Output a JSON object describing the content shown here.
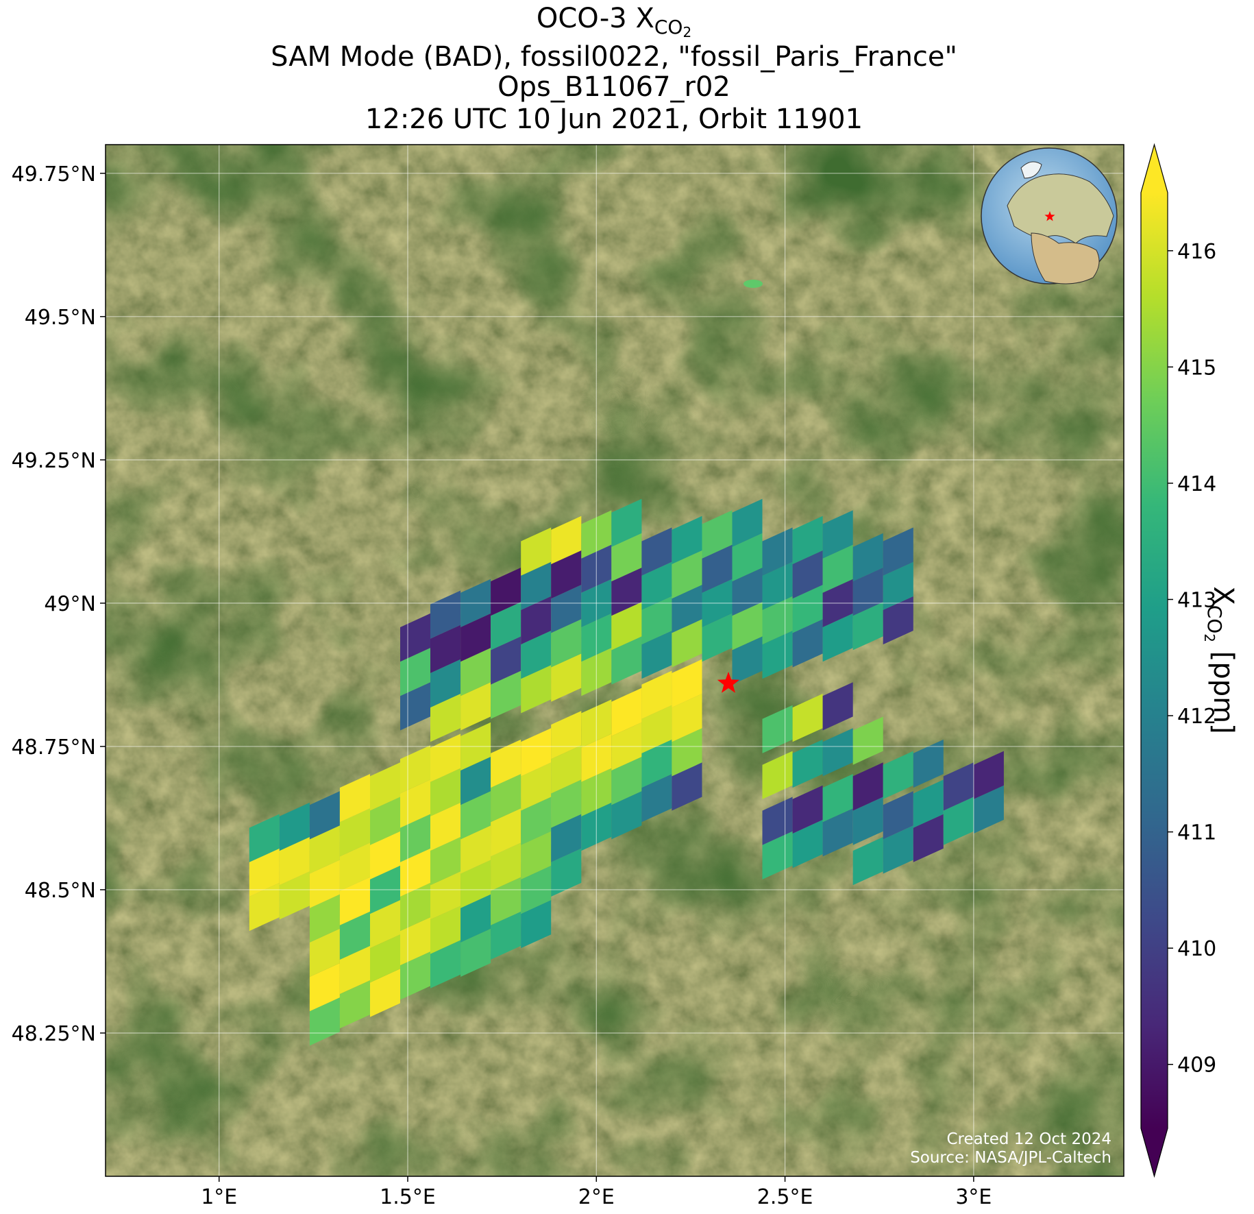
{
  "chart_data": {
    "type": "map",
    "title": {
      "text": "OCO-3 X",
      "subscript": "CO",
      "subsubscript": "2"
    },
    "subtitles": [
      "SAM Mode (BAD), fossil0022, \"fossil_Paris_France\"",
      "Ops_B11067_r02",
      "12:26 UTC 10 Jun 2021, Orbit 11901"
    ],
    "xlim": [
      0.699,
      3.398
    ],
    "ylim": [
      48.0,
      49.8
    ],
    "xticks": [
      {
        "value": 1,
        "label": "1°E"
      },
      {
        "value": 1.5,
        "label": "1.5°E"
      },
      {
        "value": 2,
        "label": "2°E"
      },
      {
        "value": 2.5,
        "label": "2.5°E"
      },
      {
        "value": 3,
        "label": "3°E"
      }
    ],
    "yticks": [
      {
        "value": 48.25,
        "label": "48.25°N"
      },
      {
        "value": 48.5,
        "label": "48.5°N"
      },
      {
        "value": 48.75,
        "label": "48.75°N"
      },
      {
        "value": 49,
        "label": "49°N"
      },
      {
        "value": 49.25,
        "label": "49.25°N"
      },
      {
        "value": 49.5,
        "label": "49.5°N"
      },
      {
        "value": 49.75,
        "label": "49.75°N"
      }
    ],
    "grid": true,
    "colormap": "viridis",
    "clim": [
      408.45,
      416.5
    ],
    "colorbar_ticks": [
      409,
      410,
      411,
      412,
      413,
      414,
      415,
      416
    ],
    "colorbar_extend": "both",
    "colorbar_label": {
      "text": "X",
      "subscript": "CO",
      "subsubscript": "2",
      "unit": " [ppm]"
    },
    "target": {
      "lon": 2.35,
      "lat": 48.86,
      "color": "#ff0000"
    },
    "credits": [
      "Created 12 Oct 2024",
      "Source: NASA/JPL-Caltech"
    ],
    "soundings": {
      "lon": [
        1.12,
        1.12,
        1.12,
        1.2,
        1.2,
        1.2,
        1.28,
        1.28,
        1.28,
        1.28,
        1.28,
        1.28,
        1.28,
        1.36,
        1.36,
        1.36,
        1.36,
        1.36,
        1.36,
        1.36,
        1.44,
        1.44,
        1.44,
        1.44,
        1.44,
        1.44,
        1.44,
        1.52,
        1.52,
        1.52,
        1.52,
        1.52,
        1.52,
        1.52,
        1.6,
        1.6,
        1.6,
        1.6,
        1.6,
        1.6,
        1.6,
        1.68,
        1.68,
        1.68,
        1.68,
        1.68,
        1.68,
        1.68,
        1.76,
        1.76,
        1.76,
        1.76,
        1.76,
        1.76,
        1.84,
        1.84,
        1.84,
        1.84,
        1.84,
        1.84,
        1.92,
        1.92,
        1.92,
        1.92,
        1.92,
        2.0,
        2.0,
        2.0,
        2.0,
        2.08,
        2.08,
        2.08,
        2.08,
        2.16,
        2.16,
        2.16,
        2.16,
        2.24,
        2.24,
        2.24,
        2.24,
        1.52,
        1.52,
        1.52,
        1.6,
        1.6,
        1.6,
        1.6,
        1.68,
        1.68,
        1.68,
        1.68,
        1.76,
        1.76,
        1.76,
        1.76,
        1.84,
        1.84,
        1.84,
        1.84,
        1.84,
        1.92,
        1.92,
        1.92,
        1.92,
        1.92,
        2.0,
        2.0,
        2.0,
        2.0,
        2.0,
        2.08,
        2.08,
        2.08,
        2.08,
        2.08,
        2.16,
        2.16,
        2.16,
        2.16,
        2.24,
        2.24,
        2.24,
        2.24,
        2.32,
        2.32,
        2.32,
        2.32,
        2.4,
        2.4,
        2.4,
        2.4,
        2.4,
        2.48,
        2.48,
        2.48,
        2.48,
        2.56,
        2.56,
        2.56,
        2.56,
        2.64,
        2.64,
        2.64,
        2.64,
        2.72,
        2.72,
        2.72,
        2.8,
        2.8,
        2.8,
        2.48,
        2.48,
        2.48,
        2.48,
        2.56,
        2.56,
        2.56,
        2.56,
        2.64,
        2.64,
        2.64,
        2.64,
        2.72,
        2.72,
        2.72,
        2.72,
        2.8,
        2.8,
        2.8,
        2.88,
        2.88,
        2.88,
        2.96,
        2.96,
        3.04,
        3.04
      ],
      "lat": [
        48.47,
        48.53,
        48.59,
        48.49,
        48.55,
        48.61,
        48.27,
        48.33,
        48.39,
        48.45,
        48.51,
        48.57,
        48.63,
        48.3,
        48.36,
        48.42,
        48.48,
        48.54,
        48.6,
        48.66,
        48.32,
        48.38,
        48.44,
        48.5,
        48.56,
        48.62,
        48.68,
        48.35,
        48.41,
        48.47,
        48.53,
        48.59,
        48.65,
        48.71,
        48.37,
        48.43,
        48.49,
        48.55,
        48.61,
        48.67,
        48.73,
        48.39,
        48.45,
        48.51,
        48.57,
        48.63,
        48.69,
        48.75,
        48.42,
        48.48,
        48.54,
        48.6,
        48.66,
        48.72,
        48.44,
        48.5,
        48.56,
        48.62,
        48.68,
        48.74,
        48.53,
        48.59,
        48.65,
        48.71,
        48.77,
        48.61,
        48.67,
        48.73,
        48.79,
        48.63,
        48.69,
        48.75,
        48.81,
        48.66,
        48.72,
        48.78,
        48.84,
        48.68,
        48.74,
        48.8,
        48.86,
        48.82,
        48.88,
        48.94,
        48.8,
        48.86,
        48.92,
        48.98,
        48.82,
        48.88,
        48.94,
        49.0,
        48.84,
        48.9,
        48.96,
        49.02,
        48.85,
        48.91,
        48.97,
        49.03,
        49.09,
        48.87,
        48.93,
        48.99,
        49.05,
        49.11,
        48.88,
        48.94,
        49.0,
        49.06,
        49.12,
        48.9,
        48.96,
        49.02,
        49.08,
        49.14,
        48.91,
        48.97,
        49.03,
        49.09,
        48.93,
        48.99,
        49.05,
        49.11,
        48.94,
        49.0,
        49.06,
        49.12,
        48.9,
        48.96,
        49.02,
        49.08,
        49.14,
        48.91,
        48.97,
        49.03,
        49.09,
        48.93,
        48.99,
        49.05,
        49.11,
        48.94,
        49.0,
        49.06,
        49.12,
        48.96,
        49.02,
        49.08,
        48.97,
        49.03,
        49.09,
        48.56,
        48.62,
        48.7,
        48.78,
        48.58,
        48.64,
        48.72,
        48.8,
        48.6,
        48.66,
        48.74,
        48.82,
        48.55,
        48.62,
        48.68,
        48.76,
        48.57,
        48.63,
        48.7,
        48.59,
        48.65,
        48.72,
        48.62,
        48.68,
        48.64,
        48.7
      ],
      "xco2": [
        416.2,
        416.4,
        413.5,
        415.9,
        416.3,
        412.8,
        414.5,
        416.5,
        416.1,
        415.2,
        416.4,
        416.0,
        411.5,
        415.0,
        416.3,
        414.2,
        416.5,
        416.2,
        415.8,
        416.4,
        416.4,
        415.6,
        416.1,
        413.9,
        416.5,
        415.1,
        416.0,
        414.8,
        416.2,
        415.4,
        416.5,
        414.6,
        416.3,
        416.1,
        413.9,
        415.7,
        416.0,
        415.2,
        416.4,
        415.5,
        416.3,
        414.1,
        413.0,
        415.6,
        416.1,
        414.7,
        412.4,
        415.9,
        413.6,
        414.9,
        415.8,
        416.2,
        415.0,
        416.4,
        412.9,
        414.2,
        415.1,
        414.6,
        416.0,
        416.5,
        413.3,
        412.1,
        414.8,
        415.9,
        416.3,
        413.0,
        415.2,
        416.4,
        416.1,
        412.6,
        414.5,
        416.2,
        416.5,
        411.8,
        413.7,
        416.0,
        416.4,
        410.2,
        415.1,
        416.3,
        416.5,
        411.0,
        414.2,
        409.5,
        415.8,
        412.3,
        409.2,
        410.8,
        416.1,
        414.9,
        409.0,
        411.6,
        414.7,
        410.1,
        413.4,
        408.9,
        415.5,
        413.2,
        409.4,
        412.0,
        415.9,
        416.0,
        414.4,
        411.2,
        409.1,
        416.3,
        415.3,
        413.8,
        412.6,
        410.4,
        415.0,
        414.1,
        415.6,
        409.3,
        414.8,
        413.5,
        412.5,
        414.0,
        413.1,
        410.7,
        415.2,
        411.9,
        414.6,
        413.0,
        413.6,
        412.8,
        410.9,
        414.3,
        412.2,
        414.7,
        411.4,
        413.9,
        412.6,
        413.1,
        414.2,
        412.7,
        411.8,
        411.3,
        413.8,
        410.5,
        413.2,
        412.9,
        409.6,
        414.0,
        412.4,
        413.5,
        410.8,
        412.0,
        409.8,
        412.5,
        411.1,
        413.8,
        410.3,
        415.6,
        414.2,
        412.9,
        409.4,
        413.1,
        415.8,
        411.6,
        413.7,
        412.4,
        409.7,
        413.2,
        412.0,
        409.2,
        414.9,
        412.4,
        410.9,
        413.6,
        409.5,
        412.8,
        411.7,
        413.3,
        410.1,
        411.9,
        409.3
      ]
    }
  }
}
